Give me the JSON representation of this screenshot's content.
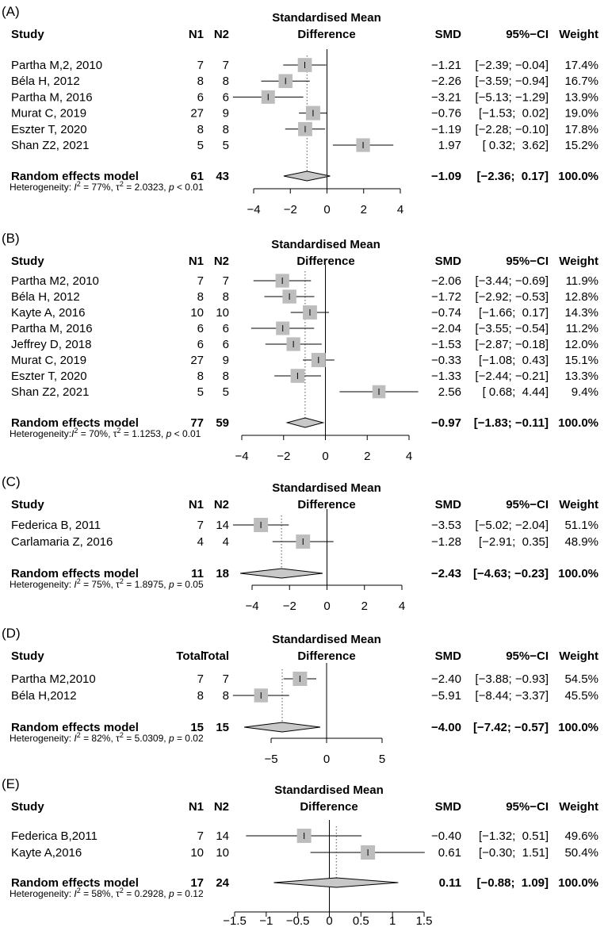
{
  "chart_data": [
    {
      "type": "forest",
      "panel_label": "(A)",
      "title_line1": "Standardised Mean",
      "title_line2": "Difference",
      "headers": {
        "study": "Study",
        "n1": "N1",
        "n2": "N2",
        "smd": "SMD",
        "ci": "95%−CI",
        "weight": "Weight"
      },
      "studies": [
        {
          "name": "Partha M,2, 2010",
          "n1": "7",
          "n2": "7",
          "smd": -1.21,
          "lo": -2.39,
          "hi": -0.04,
          "weight": 17.4,
          "smd_text": "−1.21",
          "ci_text": "[−2.39; −0.04]",
          "weight_text": "17.4%"
        },
        {
          "name": "Béla H, 2012",
          "n1": "8",
          "n2": "8",
          "smd": -2.26,
          "lo": -3.59,
          "hi": -0.94,
          "weight": 16.7,
          "smd_text": "−2.26",
          "ci_text": "[−3.59; −0.94]",
          "weight_text": "16.7%"
        },
        {
          "name": "Partha M, 2016",
          "n1": "6",
          "n2": "6",
          "smd": -3.21,
          "lo": -5.13,
          "hi": -1.29,
          "weight": 13.9,
          "smd_text": "−3.21",
          "ci_text": "[−5.13; −1.29]",
          "weight_text": "13.9%"
        },
        {
          "name": "Murat C, 2019",
          "n1": "27",
          "n2": "9",
          "smd": -0.76,
          "lo": -1.53,
          "hi": 0.02,
          "weight": 19.0,
          "smd_text": "−0.76",
          "ci_text": "[−1.53;  0.02]",
          "weight_text": "19.0%"
        },
        {
          "name": "Eszter T, 2020",
          "n1": "8",
          "n2": "8",
          "smd": -1.19,
          "lo": -2.28,
          "hi": -0.1,
          "weight": 17.8,
          "smd_text": "−1.19",
          "ci_text": "[−2.28; −0.10]",
          "weight_text": "17.8%"
        },
        {
          "name": "Shan Z2, 2021",
          "n1": "5",
          "n2": "5",
          "smd": 1.97,
          "lo": 0.32,
          "hi": 3.62,
          "weight": 15.2,
          "smd_text": "1.97",
          "ci_text": "[ 0.32;  3.62]",
          "weight_text": "15.2%"
        }
      ],
      "pooled": {
        "label": "Random effects model",
        "n1": "61",
        "n2": "43",
        "smd": -1.09,
        "lo": -2.36,
        "hi": 0.17,
        "smd_text": "−1.09",
        "ci_text": "[−2.36;  0.17]",
        "weight_text": "100.0%"
      },
      "heterogeneity": {
        "prefix": "Heterogeneity: ",
        "i2": "I",
        "i2_rest": " = 77%, ",
        "tau": "τ",
        "tau_rest": " = 2.0323, ",
        "p": "p",
        "p_rest": " < 0.01"
      },
      "xlim": [
        -4,
        4
      ],
      "ticks": [
        -4,
        -2,
        0,
        2,
        4
      ],
      "tick_labels": [
        "−4",
        "−2",
        "0",
        "2",
        "4"
      ]
    },
    {
      "type": "forest",
      "panel_label": "(B)",
      "title_line1": "Standardised Mean",
      "title_line2": "Difference",
      "headers": {
        "study": "Study",
        "n1": "N1",
        "n2": "N2",
        "smd": "SMD",
        "ci": "95%−CI",
        "weight": "Weight"
      },
      "studies": [
        {
          "name": "Partha M2, 2010",
          "n1": "7",
          "n2": "7",
          "smd": -2.06,
          "lo": -3.44,
          "hi": -0.69,
          "weight": 11.9,
          "smd_text": "−2.06",
          "ci_text": "[−3.44; −0.69]",
          "weight_text": "11.9%"
        },
        {
          "name": "Béla H, 2012",
          "n1": "8",
          "n2": "8",
          "smd": -1.72,
          "lo": -2.92,
          "hi": -0.53,
          "weight": 12.8,
          "smd_text": "−1.72",
          "ci_text": "[−2.92; −0.53]",
          "weight_text": "12.8%"
        },
        {
          "name": "Kayte A, 2016",
          "n1": "10",
          "n2": "10",
          "smd": -0.74,
          "lo": -1.66,
          "hi": 0.17,
          "weight": 14.3,
          "smd_text": "−0.74",
          "ci_text": "[−1.66;  0.17]",
          "weight_text": "14.3%"
        },
        {
          "name": "Partha M, 2016",
          "n1": "6",
          "n2": "6",
          "smd": -2.04,
          "lo": -3.55,
          "hi": -0.54,
          "weight": 11.2,
          "smd_text": "−2.04",
          "ci_text": "[−3.55; −0.54]",
          "weight_text": "11.2%"
        },
        {
          "name": "Jeffrey D, 2018",
          "n1": "6",
          "n2": "6",
          "smd": -1.53,
          "lo": -2.87,
          "hi": -0.18,
          "weight": 12.0,
          "smd_text": "−1.53",
          "ci_text": "[−2.87; −0.18]",
          "weight_text": "12.0%"
        },
        {
          "name": "Murat C, 2019",
          "n1": "27",
          "n2": "9",
          "smd": -0.33,
          "lo": -1.08,
          "hi": 0.43,
          "weight": 15.1,
          "smd_text": "−0.33",
          "ci_text": "[−1.08;  0.43]",
          "weight_text": "15.1%"
        },
        {
          "name": "Eszter T, 2020",
          "n1": "8",
          "n2": "8",
          "smd": -1.33,
          "lo": -2.44,
          "hi": -0.21,
          "weight": 13.3,
          "smd_text": "−1.33",
          "ci_text": "[−2.44; −0.21]",
          "weight_text": "13.3%"
        },
        {
          "name": "Shan Z2, 2021",
          "n1": "5",
          "n2": "5",
          "smd": 2.56,
          "lo": 0.68,
          "hi": 4.44,
          "weight": 9.4,
          "smd_text": "2.56",
          "ci_text": "[ 0.68;  4.44]",
          "weight_text": "9.4%"
        }
      ],
      "pooled": {
        "label": "Random effects model",
        "n1": "77",
        "n2": "59",
        "smd": -0.97,
        "lo": -1.83,
        "hi": -0.11,
        "smd_text": "−0.97",
        "ci_text": "[−1.83; −0.11]",
        "weight_text": "100.0%"
      },
      "heterogeneity": {
        "prefix": "Heterogeneity:",
        "i2": "I",
        "i2_rest": " = 70%, ",
        "tau": "τ",
        "tau_rest": " = 1.1253, ",
        "p": "p",
        "p_rest": " < 0.01"
      },
      "xlim": [
        -4,
        4
      ],
      "ticks": [
        -4,
        -2,
        0,
        2,
        4
      ],
      "tick_labels": [
        "−4",
        "−2",
        "0",
        "2",
        "4"
      ]
    },
    {
      "type": "forest",
      "panel_label": "(C)",
      "title_line1": "Standardised Mean",
      "title_line2": "Difference",
      "headers": {
        "study": "Study",
        "n1": "N1",
        "n2": "N2",
        "smd": "SMD",
        "ci": "95%−CI",
        "weight": "Weight"
      },
      "studies": [
        {
          "name": "Federica B, 2011",
          "n1": "7",
          "n2": "14",
          "smd": -3.53,
          "lo": -5.02,
          "hi": -2.04,
          "weight": 51.1,
          "smd_text": "−3.53",
          "ci_text": "[−5.02; −2.04]",
          "weight_text": "51.1%"
        },
        {
          "name": "Carlamaria Z, 2016",
          "n1": "4",
          "n2": "4",
          "smd": -1.28,
          "lo": -2.91,
          "hi": 0.35,
          "weight": 48.9,
          "smd_text": "−1.28",
          "ci_text": "[−2.91;  0.35]",
          "weight_text": "48.9%"
        }
      ],
      "pooled": {
        "label": "Random effects model",
        "n1": "11",
        "n2": "18",
        "smd": -2.43,
        "lo": -4.63,
        "hi": -0.23,
        "smd_text": "−2.43",
        "ci_text": "[−4.63; −0.23]",
        "weight_text": "100.0%"
      },
      "heterogeneity": {
        "prefix": "Heterogeneity: ",
        "i2": "I",
        "i2_rest": " = 75%, ",
        "tau": "τ",
        "tau_rest": " = 1.8975, ",
        "p": "p",
        "p_rest": " = 0.05"
      },
      "xlim": [
        -4,
        4
      ],
      "ticks": [
        -4,
        -2,
        0,
        2,
        4
      ],
      "tick_labels": [
        "−4",
        "−2",
        "0",
        "2",
        "4"
      ]
    },
    {
      "type": "forest",
      "panel_label": "(D)",
      "title_line1": "Standardised Mean",
      "title_line2": "Difference",
      "headers": {
        "study": "Study",
        "n1": "Total",
        "n2": "Total",
        "smd": "SMD",
        "ci": "95%−CI",
        "weight": "Weight"
      },
      "studies": [
        {
          "name": "Partha M2,2010",
          "n1": "7",
          "n2": "7",
          "smd": -2.4,
          "lo": -3.88,
          "hi": -0.93,
          "weight": 54.5,
          "smd_text": "−2.40",
          "ci_text": "[−3.88; −0.93]",
          "weight_text": "54.5%"
        },
        {
          "name": "Béla H,2012",
          "n1": "8",
          "n2": "8",
          "smd": -5.91,
          "lo": -8.44,
          "hi": -3.37,
          "weight": 45.5,
          "smd_text": "−5.91",
          "ci_text": "[−8.44; −3.37]",
          "weight_text": "45.5%"
        }
      ],
      "pooled": {
        "label": "Random effects model",
        "n1": "15",
        "n2": "15",
        "smd": -4.0,
        "lo": -7.42,
        "hi": -0.57,
        "smd_text": "−4.00",
        "ci_text": "[−7.42; −0.57]",
        "weight_text": "100.0%"
      },
      "heterogeneity": {
        "prefix": "Heterogeneity: ",
        "i2": "I",
        "i2_rest": " = 82%, ",
        "tau": "τ",
        "tau_rest": " = 5.0309, ",
        "p": "p",
        "p_rest": " = 0.02"
      },
      "xlim": [
        -5,
        5
      ],
      "ticks": [
        -5,
        0,
        5
      ],
      "tick_labels": [
        "−5",
        "0",
        "5"
      ]
    },
    {
      "type": "forest",
      "panel_label": "(E)",
      "title_line1": "Standardised Mean",
      "title_line2": "Difference",
      "headers": {
        "study": "Study",
        "n1": "N1",
        "n2": "N2",
        "smd": "SMD",
        "ci": "95%−CI",
        "weight": "Weight"
      },
      "studies": [
        {
          "name": "Federica B,2011",
          "n1": "7",
          "n2": "14",
          "smd": -0.4,
          "lo": -1.32,
          "hi": 0.51,
          "weight": 49.6,
          "smd_text": "−0.40",
          "ci_text": "[−1.32;  0.51]",
          "weight_text": "49.6%"
        },
        {
          "name": "Kayte A,2016",
          "n1": "10",
          "n2": "10",
          "smd": 0.61,
          "lo": -0.3,
          "hi": 1.51,
          "weight": 50.4,
          "smd_text": "0.61",
          "ci_text": "[−0.30;  1.51]",
          "weight_text": "50.4%"
        }
      ],
      "pooled": {
        "label": "Random effects model",
        "n1": "17",
        "n2": "24",
        "smd": 0.11,
        "lo": -0.88,
        "hi": 1.09,
        "smd_text": "0.11",
        "ci_text": "[−0.88;  1.09]",
        "weight_text": "100.0%"
      },
      "heterogeneity": {
        "prefix": "Heterogeneity: ",
        "i2": "I",
        "i2_rest": " = 58%, ",
        "tau": "τ",
        "tau_rest": " = 0.2928, ",
        "p": "p",
        "p_rest": " = 0.12"
      },
      "xlim": [
        -1.5,
        1.5
      ],
      "ticks": [
        -1.5,
        -1,
        -0.5,
        0,
        0.5,
        1,
        1.5
      ],
      "tick_labels": [
        "−1.5",
        "−1",
        "−0.5",
        "0",
        "0.5",
        "1",
        "1.5"
      ]
    }
  ]
}
